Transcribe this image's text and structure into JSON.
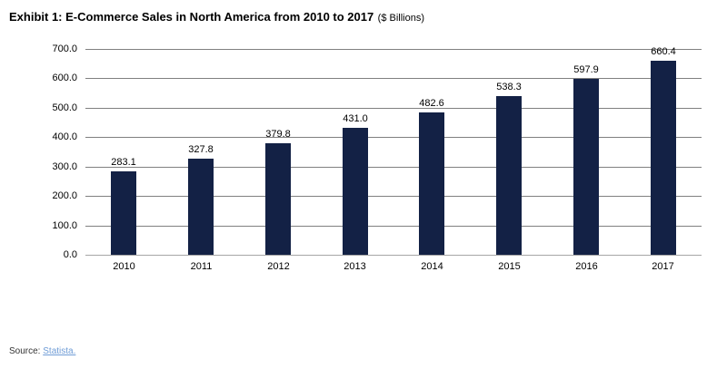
{
  "title": {
    "main": "Exhibit 1: E-Commerce Sales in North America from 2010 to 2017",
    "unit": "($ Billions)"
  },
  "chart_data": {
    "type": "bar",
    "title": "Exhibit 1: E-Commerce Sales in North America from 2010 to 2017 ($ Billions)",
    "categories": [
      "2010",
      "2011",
      "2012",
      "2013",
      "2014",
      "2015",
      "2016",
      "2017"
    ],
    "values": [
      283.1,
      327.8,
      379.8,
      431.0,
      482.6,
      538.3,
      597.9,
      660.4
    ],
    "value_labels": [
      "283.1",
      "327.8",
      "379.8",
      "431.0",
      "482.6",
      "538.3",
      "597.9",
      "660.4"
    ],
    "xlabel": "",
    "ylabel": "",
    "ylim": [
      0,
      700
    ],
    "ytick_step": 100,
    "ytick_labels": [
      "0.0",
      "100.0",
      "200.0",
      "300.0",
      "400.0",
      "500.0",
      "600.0",
      "700.0"
    ],
    "grid": true,
    "legend": "none",
    "bar_color": "#132145",
    "gridline_color": "#808080",
    "baseline_color": "#a6a6a6"
  },
  "source": {
    "prefix": "Source:",
    "link_text": "Statista."
  }
}
